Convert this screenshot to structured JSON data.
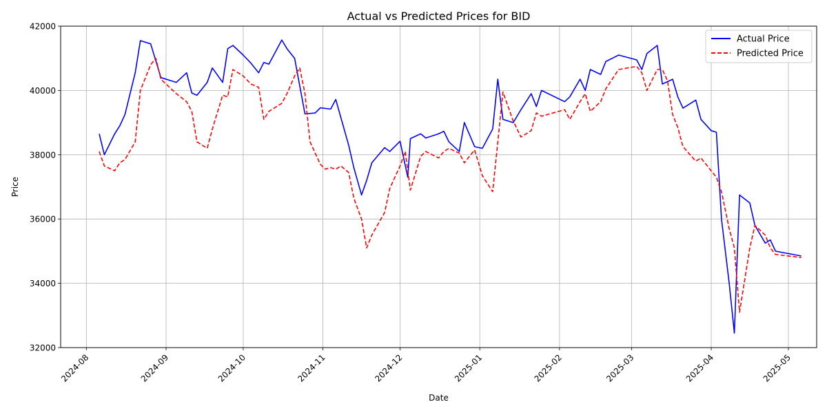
{
  "chart_data": {
    "type": "line",
    "title": "Actual vs Predicted Prices for BID",
    "xlabel": "Date",
    "ylabel": "Price",
    "xlim": [
      "2024-07-22",
      "2025-05-12"
    ],
    "ylim": [
      32000,
      42000
    ],
    "yticks": [
      32000,
      34000,
      36000,
      38000,
      40000,
      42000
    ],
    "xticks": [
      "2024-08-01",
      "2024-09-01",
      "2024-10-01",
      "2024-11-01",
      "2024-12-01",
      "2025-01-01",
      "2025-02-01",
      "2025-03-01",
      "2025-04-01",
      "2025-05-01"
    ],
    "xtick_labels": [
      "2024-08",
      "2024-09",
      "2024-10",
      "2024-11",
      "2024-12",
      "2025-01",
      "2025-02",
      "2025-03",
      "2025-04",
      "2025-05"
    ],
    "grid": true,
    "legend_position": "top-right",
    "series": [
      {
        "name": "Actual Price",
        "color": "#0000ff",
        "style": "solid",
        "points": [
          [
            "2024-08-06",
            38650
          ],
          [
            "2024-08-08",
            38000
          ],
          [
            "2024-08-12",
            38650
          ],
          [
            "2024-08-14",
            38900
          ],
          [
            "2024-08-16",
            39250
          ],
          [
            "2024-08-20",
            40550
          ],
          [
            "2024-08-22",
            41550
          ],
          [
            "2024-08-26",
            41450
          ],
          [
            "2024-08-30",
            40400
          ],
          [
            "2024-09-05",
            40250
          ],
          [
            "2024-09-09",
            40550
          ],
          [
            "2024-09-11",
            39920
          ],
          [
            "2024-09-13",
            39850
          ],
          [
            "2024-09-17",
            40250
          ],
          [
            "2024-09-19",
            40700
          ],
          [
            "2024-09-23",
            40250
          ],
          [
            "2024-09-25",
            41300
          ],
          [
            "2024-09-27",
            41400
          ],
          [
            "2024-10-01",
            41100
          ],
          [
            "2024-10-04",
            40850
          ],
          [
            "2024-10-07",
            40550
          ],
          [
            "2024-10-09",
            40870
          ],
          [
            "2024-10-11",
            40820
          ],
          [
            "2024-10-16",
            41570
          ],
          [
            "2024-10-18",
            41300
          ],
          [
            "2024-10-21",
            41000
          ],
          [
            "2024-10-25",
            39270
          ],
          [
            "2024-10-29",
            39300
          ],
          [
            "2024-10-31",
            39460
          ],
          [
            "2024-11-04",
            39420
          ],
          [
            "2024-11-06",
            39720
          ],
          [
            "2024-11-08",
            39150
          ],
          [
            "2024-11-11",
            38300
          ],
          [
            "2024-11-13",
            37600
          ],
          [
            "2024-11-16",
            36750
          ],
          [
            "2024-11-18",
            37200
          ],
          [
            "2024-11-20",
            37750
          ],
          [
            "2024-11-25",
            38220
          ],
          [
            "2024-11-27",
            38100
          ],
          [
            "2024-12-01",
            38420
          ],
          [
            "2024-12-04",
            37300
          ],
          [
            "2024-12-05",
            38500
          ],
          [
            "2024-12-09",
            38650
          ],
          [
            "2024-12-11",
            38520
          ],
          [
            "2024-12-16",
            38650
          ],
          [
            "2024-12-18",
            38730
          ],
          [
            "2024-12-20",
            38400
          ],
          [
            "2024-12-24",
            38100
          ],
          [
            "2024-12-26",
            39000
          ],
          [
            "2024-12-30",
            38250
          ],
          [
            "2025-01-02",
            38200
          ],
          [
            "2025-01-06",
            38800
          ],
          [
            "2025-01-08",
            40350
          ],
          [
            "2025-01-10",
            39100
          ],
          [
            "2025-01-14",
            39000
          ],
          [
            "2025-01-17",
            39400
          ],
          [
            "2025-01-21",
            39900
          ],
          [
            "2025-01-23",
            39500
          ],
          [
            "2025-01-25",
            40000
          ],
          [
            "2025-02-03",
            39650
          ],
          [
            "2025-02-05",
            39800
          ],
          [
            "2025-02-09",
            40350
          ],
          [
            "2025-02-11",
            40000
          ],
          [
            "2025-02-13",
            40650
          ],
          [
            "2025-02-17",
            40500
          ],
          [
            "2025-02-19",
            40900
          ],
          [
            "2025-02-24",
            41100
          ],
          [
            "2025-03-03",
            40950
          ],
          [
            "2025-03-05",
            40650
          ],
          [
            "2025-03-07",
            41150
          ],
          [
            "2025-03-11",
            41400
          ],
          [
            "2025-03-13",
            40200
          ],
          [
            "2025-03-17",
            40350
          ],
          [
            "2025-03-19",
            39800
          ],
          [
            "2025-03-21",
            39450
          ],
          [
            "2025-03-26",
            39700
          ],
          [
            "2025-03-28",
            39100
          ],
          [
            "2025-04-01",
            38750
          ],
          [
            "2025-04-03",
            38700
          ],
          [
            "2025-04-05",
            36000
          ],
          [
            "2025-04-08",
            34000
          ],
          [
            "2025-04-10",
            32450
          ],
          [
            "2025-04-12",
            36750
          ],
          [
            "2025-04-16",
            36500
          ],
          [
            "2025-04-18",
            35800
          ],
          [
            "2025-04-22",
            35250
          ],
          [
            "2025-04-24",
            35350
          ],
          [
            "2025-04-26",
            35000
          ],
          [
            "2025-05-06",
            34850
          ]
        ]
      },
      {
        "name": "Predicted Price",
        "color": "#ff0000",
        "style": "dashed",
        "points": [
          [
            "2024-08-06",
            38100
          ],
          [
            "2024-08-08",
            37650
          ],
          [
            "2024-08-12",
            37500
          ],
          [
            "2024-08-14",
            37750
          ],
          [
            "2024-08-16",
            37850
          ],
          [
            "2024-08-20",
            38400
          ],
          [
            "2024-08-22",
            40000
          ],
          [
            "2024-08-26",
            40800
          ],
          [
            "2024-08-28",
            41000
          ],
          [
            "2024-08-30",
            40350
          ],
          [
            "2024-09-05",
            39900
          ],
          [
            "2024-09-09",
            39650
          ],
          [
            "2024-09-11",
            39350
          ],
          [
            "2024-09-13",
            38400
          ],
          [
            "2024-09-17",
            38200
          ],
          [
            "2024-09-19",
            38800
          ],
          [
            "2024-09-23",
            39850
          ],
          [
            "2024-09-25",
            39800
          ],
          [
            "2024-09-27",
            40650
          ],
          [
            "2024-10-01",
            40450
          ],
          [
            "2024-10-04",
            40200
          ],
          [
            "2024-10-07",
            40100
          ],
          [
            "2024-10-09",
            39100
          ],
          [
            "2024-10-11",
            39350
          ],
          [
            "2024-10-14",
            39500
          ],
          [
            "2024-10-16",
            39600
          ],
          [
            "2024-10-18",
            39900
          ],
          [
            "2024-10-21",
            40450
          ],
          [
            "2024-10-23",
            40700
          ],
          [
            "2024-10-25",
            39900
          ],
          [
            "2024-10-27",
            38400
          ],
          [
            "2024-10-29",
            38050
          ],
          [
            "2024-10-31",
            37700
          ],
          [
            "2024-11-02",
            37550
          ],
          [
            "2024-11-04",
            37600
          ],
          [
            "2024-11-06",
            37550
          ],
          [
            "2024-11-08",
            37650
          ],
          [
            "2024-11-11",
            37450
          ],
          [
            "2024-11-13",
            36650
          ],
          [
            "2024-11-16",
            36000
          ],
          [
            "2024-11-18",
            35100
          ],
          [
            "2024-11-20",
            35500
          ],
          [
            "2024-11-25",
            36200
          ],
          [
            "2024-11-27",
            36950
          ],
          [
            "2024-12-01",
            37650
          ],
          [
            "2024-12-03",
            38100
          ],
          [
            "2024-12-05",
            36900
          ],
          [
            "2024-12-09",
            37950
          ],
          [
            "2024-12-11",
            38100
          ],
          [
            "2024-12-16",
            37900
          ],
          [
            "2024-12-18",
            38100
          ],
          [
            "2024-12-20",
            38200
          ],
          [
            "2024-12-24",
            38050
          ],
          [
            "2024-12-26",
            37750
          ],
          [
            "2024-12-30",
            38150
          ],
          [
            "2025-01-02",
            37350
          ],
          [
            "2025-01-06",
            36850
          ],
          [
            "2025-01-10",
            39950
          ],
          [
            "2025-01-14",
            39050
          ],
          [
            "2025-01-17",
            38550
          ],
          [
            "2025-01-21",
            38750
          ],
          [
            "2025-01-23",
            39300
          ],
          [
            "2025-01-25",
            39200
          ],
          [
            "2025-02-03",
            39400
          ],
          [
            "2025-02-05",
            39100
          ],
          [
            "2025-02-09",
            39650
          ],
          [
            "2025-02-11",
            39900
          ],
          [
            "2025-02-13",
            39350
          ],
          [
            "2025-02-17",
            39650
          ],
          [
            "2025-02-19",
            40050
          ],
          [
            "2025-02-24",
            40650
          ],
          [
            "2025-03-03",
            40750
          ],
          [
            "2025-03-05",
            40550
          ],
          [
            "2025-03-07",
            40000
          ],
          [
            "2025-03-11",
            40650
          ],
          [
            "2025-03-13",
            40650
          ],
          [
            "2025-03-15",
            40300
          ],
          [
            "2025-03-17",
            39250
          ],
          [
            "2025-03-19",
            38850
          ],
          [
            "2025-03-21",
            38250
          ],
          [
            "2025-03-26",
            37800
          ],
          [
            "2025-03-28",
            37900
          ],
          [
            "2025-04-01",
            37500
          ],
          [
            "2025-04-03",
            37300
          ],
          [
            "2025-04-05",
            36850
          ],
          [
            "2025-04-08",
            35700
          ],
          [
            "2025-04-10",
            35100
          ],
          [
            "2025-04-12",
            33100
          ],
          [
            "2025-04-16",
            35100
          ],
          [
            "2025-04-18",
            35800
          ],
          [
            "2025-04-22",
            35500
          ],
          [
            "2025-04-24",
            35100
          ],
          [
            "2025-04-26",
            34900
          ],
          [
            "2025-05-06",
            34800
          ]
        ]
      }
    ]
  }
}
